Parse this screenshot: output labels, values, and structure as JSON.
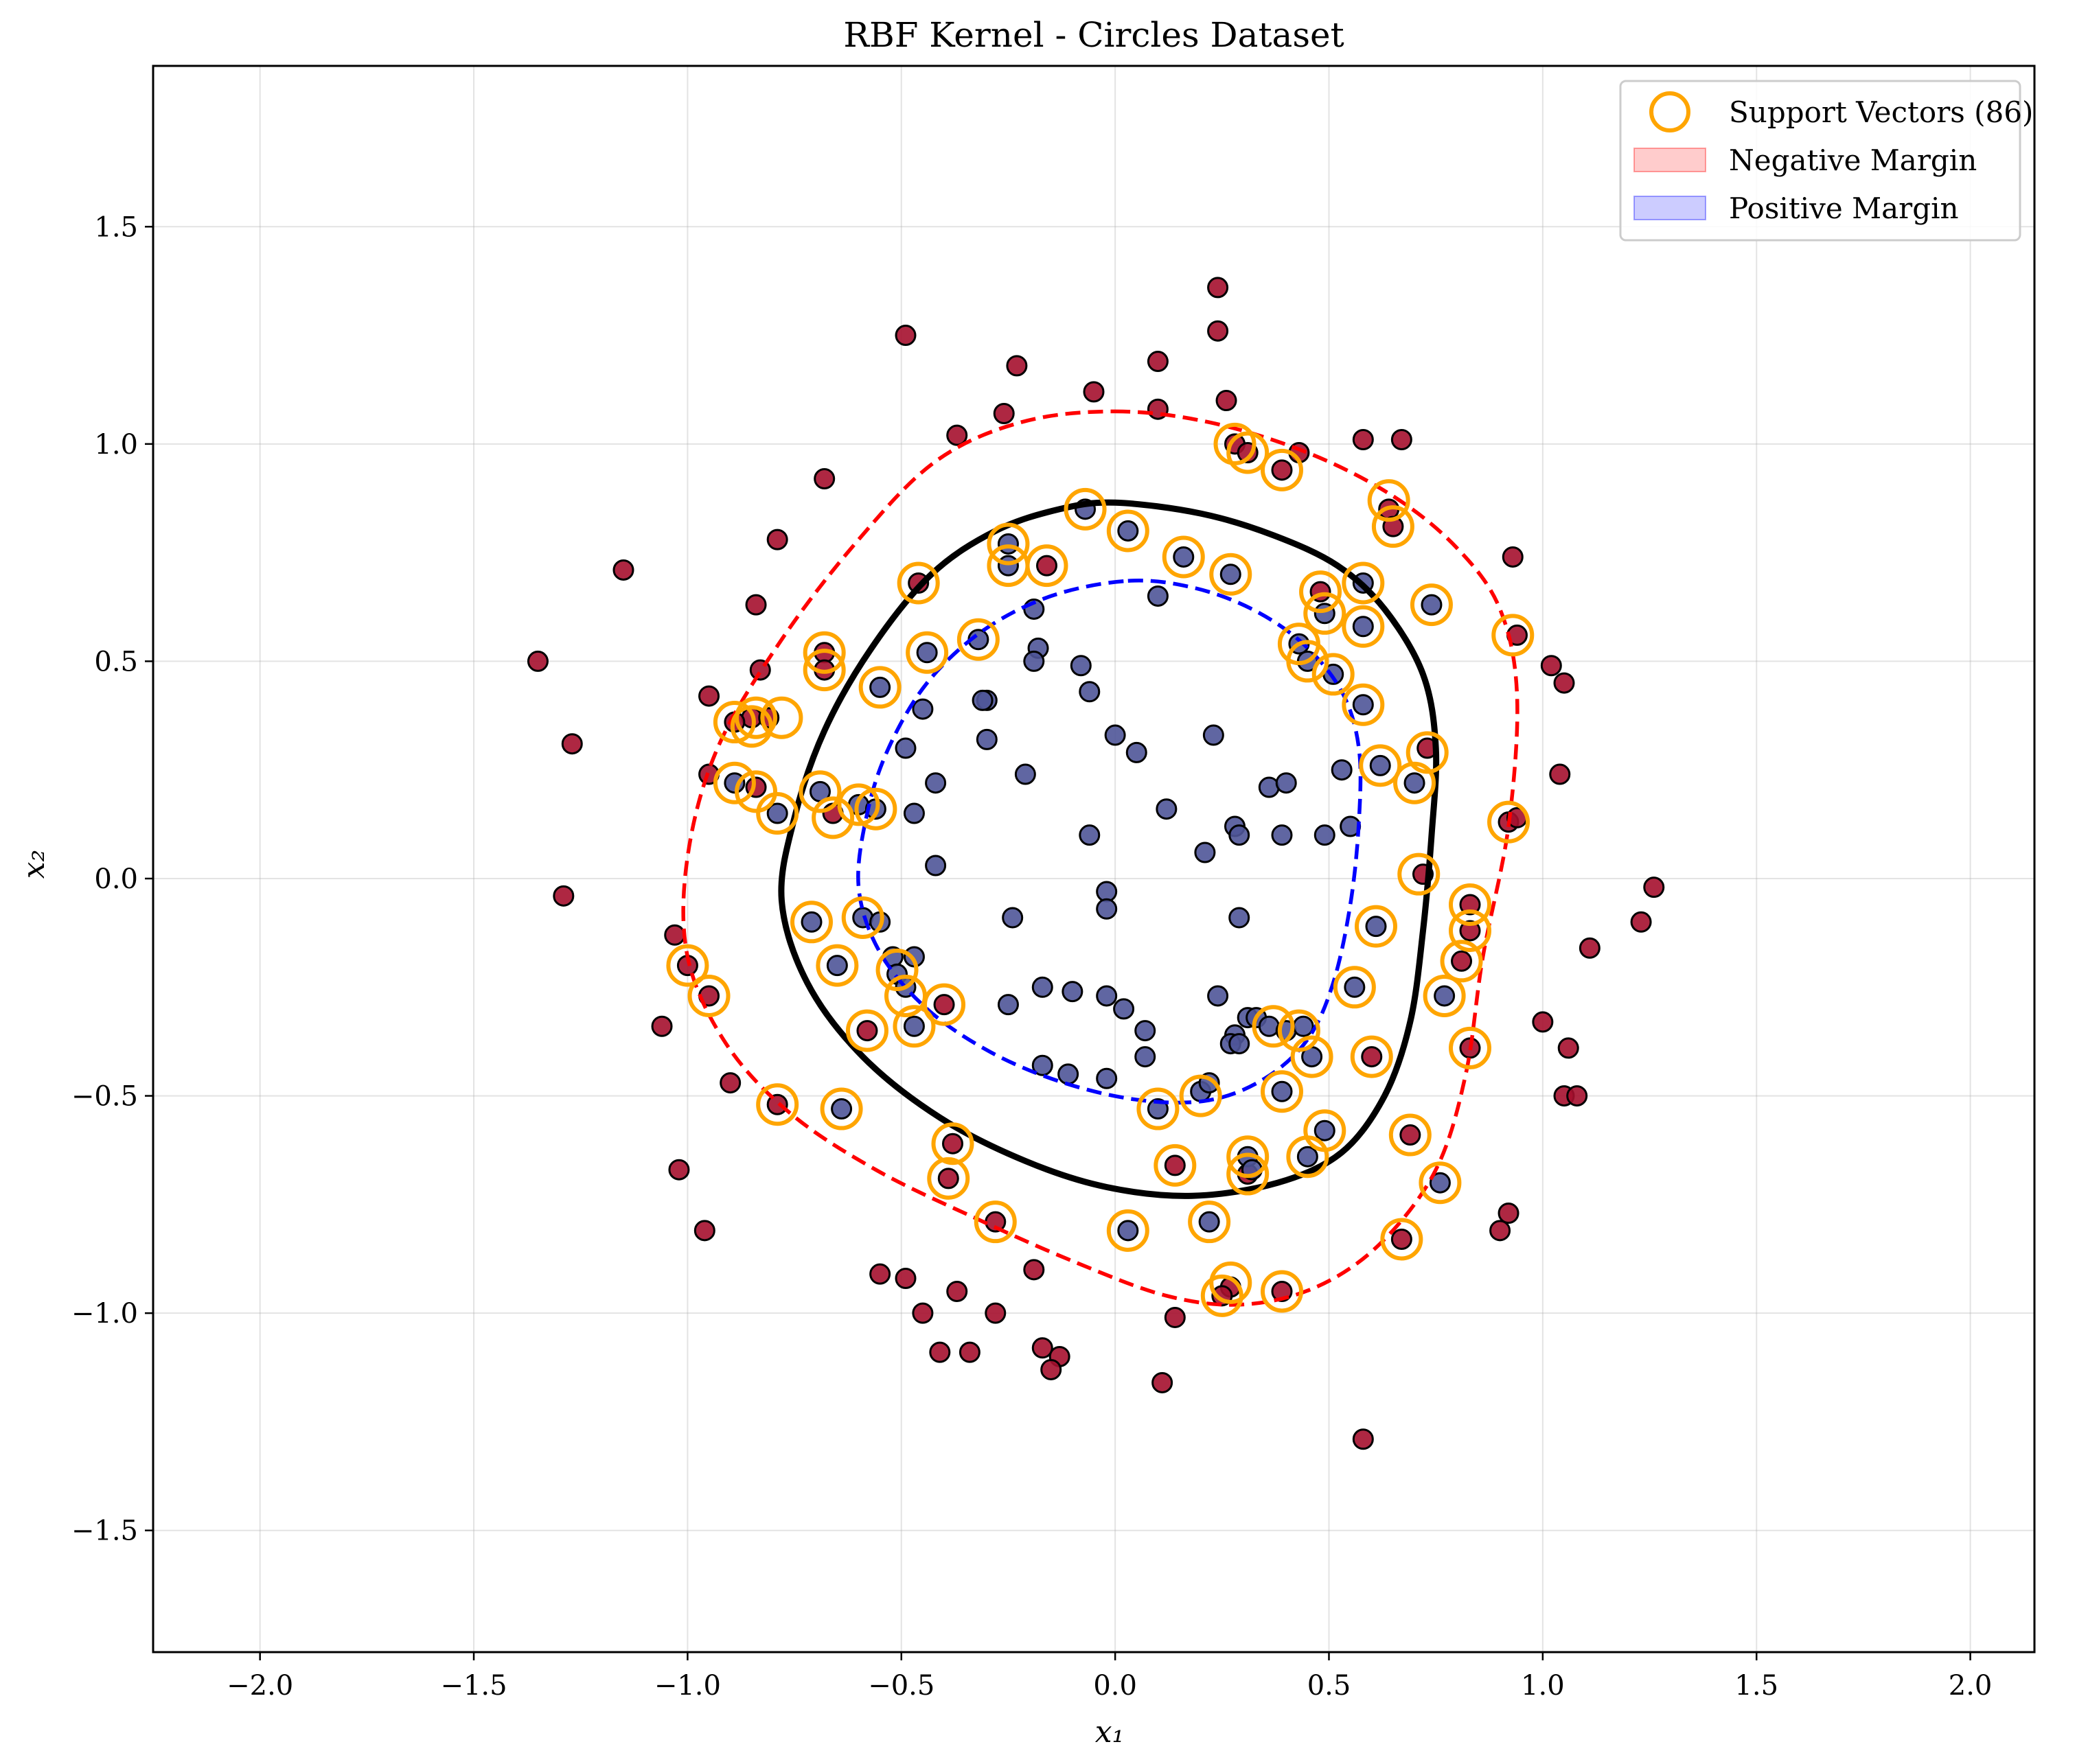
{
  "chart_data": {
    "type": "scatter",
    "title": "RBF Kernel - Circles Dataset",
    "xlabel": "x₁",
    "ylabel": "x₂",
    "xlim": [
      -2.25,
      2.15
    ],
    "ylim": [
      -1.78,
      1.87
    ],
    "xticks": [
      -2.0,
      -1.5,
      -1.0,
      -0.5,
      0.0,
      0.5,
      1.0,
      1.5,
      2.0
    ],
    "yticks": [
      -1.5,
      -1.0,
      -0.5,
      0.0,
      0.5,
      1.0,
      1.5
    ],
    "xtick_labels": [
      "−2.0",
      "−1.5",
      "−1.0",
      "−0.5",
      "0.0",
      "0.5",
      "1.0",
      "1.5",
      "2.0"
    ],
    "ytick_labels": [
      "−1.5",
      "−1.0",
      "−0.5",
      "0.0",
      "0.5",
      "1.0",
      "1.5"
    ],
    "grid": true,
    "legend_position": "top-right",
    "legend": [
      {
        "label": "Support Vectors (86)",
        "marker": "ring",
        "color": "#FFA500"
      },
      {
        "label": "Negative Margin",
        "marker": "patch",
        "color": "#FF0000"
      },
      {
        "label": "Positive Margin",
        "marker": "patch",
        "color": "#0000FF"
      }
    ],
    "colors": {
      "outer_class": "#A50F2E",
      "inner_class": "#4F5598",
      "support_ring": "#FFA500",
      "decision_boundary": "#000000",
      "negative_margin": "#FF0000",
      "positive_margin": "#0000FF"
    },
    "outer_class_points": [
      [
        0.24,
        1.36
      ],
      [
        0.24,
        1.26
      ],
      [
        -0.49,
        1.25
      ],
      [
        -0.23,
        1.18
      ],
      [
        0.1,
        1.19
      ],
      [
        -0.05,
        1.12
      ],
      [
        -0.26,
        1.07
      ],
      [
        0.1,
        1.08
      ],
      [
        0.26,
        1.1
      ],
      [
        -0.37,
        1.02
      ],
      [
        0.58,
        1.01
      ],
      [
        0.67,
        1.01
      ],
      [
        0.28,
        1.0
      ],
      [
        0.31,
        0.98
      ],
      [
        0.43,
        0.98
      ],
      [
        0.39,
        0.94
      ],
      [
        -0.68,
        0.92
      ],
      [
        0.64,
        0.85
      ],
      [
        0.65,
        0.81
      ],
      [
        -0.79,
        0.78
      ],
      [
        -1.15,
        0.71
      ],
      [
        -0.16,
        0.72
      ],
      [
        -0.46,
        0.68
      ],
      [
        0.93,
        0.74
      ],
      [
        -0.84,
        0.63
      ],
      [
        0.48,
        0.66
      ],
      [
        -1.35,
        0.5
      ],
      [
        -0.83,
        0.48
      ],
      [
        -0.68,
        0.52
      ],
      [
        -0.68,
        0.48
      ],
      [
        -0.95,
        0.42
      ],
      [
        -0.85,
        0.37
      ],
      [
        -0.89,
        0.36
      ],
      [
        -0.81,
        0.37
      ],
      [
        1.02,
        0.49
      ],
      [
        1.05,
        0.45
      ],
      [
        0.94,
        0.56
      ],
      [
        -1.27,
        0.31
      ],
      [
        0.73,
        0.3
      ],
      [
        -0.95,
        0.24
      ],
      [
        -0.84,
        0.21
      ],
      [
        1.04,
        0.24
      ],
      [
        -0.66,
        0.15
      ],
      [
        0.92,
        0.13
      ],
      [
        0.94,
        0.14
      ],
      [
        -1.29,
        -0.04
      ],
      [
        1.26,
        -0.02
      ],
      [
        0.72,
        0.01
      ],
      [
        0.83,
        -0.06
      ],
      [
        0.83,
        -0.12
      ],
      [
        1.23,
        -0.1
      ],
      [
        -1.03,
        -0.13
      ],
      [
        -1.0,
        -0.2
      ],
      [
        1.11,
        -0.16
      ],
      [
        0.81,
        -0.19
      ],
      [
        -0.95,
        -0.27
      ],
      [
        -0.4,
        -0.29
      ],
      [
        -1.06,
        -0.34
      ],
      [
        -0.58,
        -0.35
      ],
      [
        1.0,
        -0.33
      ],
      [
        0.83,
        -0.39
      ],
      [
        1.06,
        -0.39
      ],
      [
        0.6,
        -0.41
      ],
      [
        -0.9,
        -0.47
      ],
      [
        -0.79,
        -0.52
      ],
      [
        1.05,
        -0.5
      ],
      [
        1.08,
        -0.5
      ],
      [
        0.69,
        -0.59
      ],
      [
        -0.38,
        -0.61
      ],
      [
        -1.02,
        -0.67
      ],
      [
        0.14,
        -0.66
      ],
      [
        0.31,
        -0.68
      ],
      [
        -0.39,
        -0.69
      ],
      [
        -0.28,
        -0.79
      ],
      [
        -0.96,
        -0.81
      ],
      [
        0.9,
        -0.81
      ],
      [
        0.92,
        -0.77
      ],
      [
        0.67,
        -0.83
      ],
      [
        -0.19,
        -0.9
      ],
      [
        -0.55,
        -0.91
      ],
      [
        -0.49,
        -0.92
      ],
      [
        0.27,
        -0.94
      ],
      [
        0.25,
        -0.96
      ],
      [
        -0.37,
        -0.95
      ],
      [
        0.39,
        -0.95
      ],
      [
        -0.45,
        -1.0
      ],
      [
        -0.28,
        -1.0
      ],
      [
        0.14,
        -1.01
      ],
      [
        -0.41,
        -1.09
      ],
      [
        -0.34,
        -1.09
      ],
      [
        -0.17,
        -1.08
      ],
      [
        -0.13,
        -1.1
      ],
      [
        -0.15,
        -1.13
      ],
      [
        0.11,
        -1.16
      ],
      [
        0.58,
        -1.29
      ]
    ],
    "inner_class_points": [
      [
        -0.07,
        0.85
      ],
      [
        0.03,
        0.8
      ],
      [
        -0.25,
        0.77
      ],
      [
        -0.25,
        0.72
      ],
      [
        0.16,
        0.74
      ],
      [
        0.27,
        0.7
      ],
      [
        0.58,
        0.68
      ],
      [
        0.1,
        0.65
      ],
      [
        0.49,
        0.61
      ],
      [
        0.58,
        0.58
      ],
      [
        0.74,
        0.63
      ],
      [
        -0.19,
        0.62
      ],
      [
        -0.32,
        0.55
      ],
      [
        -0.44,
        0.52
      ],
      [
        0.43,
        0.54
      ],
      [
        0.45,
        0.5
      ],
      [
        -0.18,
        0.53
      ],
      [
        -0.19,
        0.5
      ],
      [
        -0.08,
        0.49
      ],
      [
        0.51,
        0.47
      ],
      [
        -0.55,
        0.44
      ],
      [
        -0.06,
        0.43
      ],
      [
        -0.3,
        0.41
      ],
      [
        -0.31,
        0.41
      ],
      [
        -0.45,
        0.39
      ],
      [
        0.58,
        0.4
      ],
      [
        0.0,
        0.33
      ],
      [
        0.23,
        0.33
      ],
      [
        -0.3,
        0.32
      ],
      [
        0.05,
        0.29
      ],
      [
        -0.49,
        0.3
      ],
      [
        0.53,
        0.25
      ],
      [
        0.62,
        0.26
      ],
      [
        -0.21,
        0.24
      ],
      [
        -0.42,
        0.22
      ],
      [
        0.36,
        0.21
      ],
      [
        0.4,
        0.22
      ],
      [
        0.7,
        0.22
      ],
      [
        -0.89,
        0.22
      ],
      [
        -0.69,
        0.2
      ],
      [
        -0.6,
        0.17
      ],
      [
        -0.56,
        0.16
      ],
      [
        -0.47,
        0.15
      ],
      [
        -0.79,
        0.15
      ],
      [
        0.12,
        0.16
      ],
      [
        0.28,
        0.12
      ],
      [
        0.29,
        0.1
      ],
      [
        0.39,
        0.1
      ],
      [
        0.49,
        0.1
      ],
      [
        0.55,
        0.12
      ],
      [
        -0.06,
        0.1
      ],
      [
        0.21,
        0.06
      ],
      [
        -0.42,
        0.03
      ],
      [
        -0.02,
        -0.03
      ],
      [
        -0.02,
        -0.07
      ],
      [
        -0.59,
        -0.09
      ],
      [
        -0.55,
        -0.1
      ],
      [
        -0.71,
        -0.1
      ],
      [
        -0.24,
        -0.09
      ],
      [
        0.29,
        -0.09
      ],
      [
        0.61,
        -0.11
      ],
      [
        -0.65,
        -0.2
      ],
      [
        -0.52,
        -0.18
      ],
      [
        -0.47,
        -0.18
      ],
      [
        -0.51,
        -0.22
      ],
      [
        -0.49,
        -0.25
      ],
      [
        -0.17,
        -0.25
      ],
      [
        -0.1,
        -0.26
      ],
      [
        -0.02,
        -0.27
      ],
      [
        0.24,
        -0.27
      ],
      [
        0.56,
        -0.25
      ],
      [
        0.77,
        -0.27
      ],
      [
        -0.25,
        -0.29
      ],
      [
        0.02,
        -0.3
      ],
      [
        -0.47,
        -0.34
      ],
      [
        0.31,
        -0.32
      ],
      [
        0.33,
        -0.32
      ],
      [
        0.36,
        -0.34
      ],
      [
        0.28,
        -0.36
      ],
      [
        0.4,
        -0.35
      ],
      [
        0.44,
        -0.34
      ],
      [
        0.07,
        -0.35
      ],
      [
        0.27,
        -0.38
      ],
      [
        0.29,
        -0.38
      ],
      [
        0.46,
        -0.41
      ],
      [
        0.07,
        -0.41
      ],
      [
        -0.17,
        -0.43
      ],
      [
        -0.11,
        -0.45
      ],
      [
        -0.02,
        -0.46
      ],
      [
        0.2,
        -0.49
      ],
      [
        0.22,
        -0.47
      ],
      [
        0.39,
        -0.49
      ],
      [
        0.1,
        -0.53
      ],
      [
        -0.64,
        -0.53
      ],
      [
        0.49,
        -0.58
      ],
      [
        0.45,
        -0.64
      ],
      [
        0.31,
        -0.64
      ],
      [
        0.32,
        -0.67
      ],
      [
        0.76,
        -0.7
      ],
      [
        0.22,
        -0.79
      ],
      [
        0.03,
        -0.81
      ]
    ],
    "support_vectors": [
      [
        0.28,
        1.0
      ],
      [
        0.31,
        0.98
      ],
      [
        0.39,
        0.94
      ],
      [
        0.64,
        0.87
      ],
      [
        0.65,
        0.81
      ],
      [
        -0.07,
        0.85
      ],
      [
        0.03,
        0.8
      ],
      [
        -0.25,
        0.77
      ],
      [
        -0.25,
        0.72
      ],
      [
        -0.16,
        0.72
      ],
      [
        0.16,
        0.74
      ],
      [
        0.27,
        0.7
      ],
      [
        -0.46,
        0.68
      ],
      [
        0.48,
        0.66
      ],
      [
        0.58,
        0.68
      ],
      [
        0.49,
        0.61
      ],
      [
        0.58,
        0.58
      ],
      [
        0.74,
        0.63
      ],
      [
        0.93,
        0.56
      ],
      [
        -0.32,
        0.55
      ],
      [
        -0.44,
        0.52
      ],
      [
        -0.68,
        0.52
      ],
      [
        -0.68,
        0.48
      ],
      [
        0.43,
        0.54
      ],
      [
        0.45,
        0.5
      ],
      [
        0.51,
        0.47
      ],
      [
        -0.55,
        0.44
      ],
      [
        0.58,
        0.4
      ],
      [
        -0.89,
        0.36
      ],
      [
        -0.84,
        0.37
      ],
      [
        -0.78,
        0.37
      ],
      [
        -0.85,
        0.35
      ],
      [
        0.62,
        0.26
      ],
      [
        0.73,
        0.29
      ],
      [
        0.7,
        0.22
      ],
      [
        -0.89,
        0.22
      ],
      [
        -0.69,
        0.2
      ],
      [
        -0.84,
        0.2
      ],
      [
        -0.6,
        0.17
      ],
      [
        -0.56,
        0.16
      ],
      [
        -0.66,
        0.14
      ],
      [
        -0.79,
        0.15
      ],
      [
        0.92,
        0.13
      ],
      [
        0.71,
        0.01
      ],
      [
        0.83,
        -0.06
      ],
      [
        0.83,
        -0.12
      ],
      [
        -0.71,
        -0.1
      ],
      [
        -0.59,
        -0.09
      ],
      [
        0.61,
        -0.11
      ],
      [
        -1.0,
        -0.2
      ],
      [
        -0.65,
        -0.2
      ],
      [
        0.81,
        -0.19
      ],
      [
        -0.51,
        -0.21
      ],
      [
        -0.95,
        -0.27
      ],
      [
        -0.49,
        -0.27
      ],
      [
        -0.4,
        -0.29
      ],
      [
        0.77,
        -0.27
      ],
      [
        0.56,
        -0.25
      ],
      [
        -0.58,
        -0.35
      ],
      [
        -0.47,
        -0.34
      ],
      [
        0.37,
        -0.34
      ],
      [
        0.43,
        -0.35
      ],
      [
        0.83,
        -0.39
      ],
      [
        0.46,
        -0.41
      ],
      [
        0.6,
        -0.41
      ],
      [
        0.39,
        -0.49
      ],
      [
        0.2,
        -0.5
      ],
      [
        -0.79,
        -0.52
      ],
      [
        -0.64,
        -0.53
      ],
      [
        0.1,
        -0.53
      ],
      [
        0.49,
        -0.58
      ],
      [
        0.69,
        -0.59
      ],
      [
        -0.38,
        -0.61
      ],
      [
        0.45,
        -0.64
      ],
      [
        0.31,
        -0.64
      ],
      [
        0.14,
        -0.66
      ],
      [
        0.31,
        -0.68
      ],
      [
        -0.39,
        -0.69
      ],
      [
        0.76,
        -0.7
      ],
      [
        -0.28,
        -0.79
      ],
      [
        0.22,
        -0.79
      ],
      [
        0.03,
        -0.81
      ],
      [
        0.67,
        -0.83
      ],
      [
        0.27,
        -0.93
      ],
      [
        0.25,
        -0.96
      ],
      [
        0.39,
        -0.95
      ]
    ],
    "decision_boundary": [
      [
        0.0,
        0.865
      ],
      [
        0.2,
        0.84
      ],
      [
        0.37,
        0.79
      ],
      [
        0.52,
        0.72
      ],
      [
        0.63,
        0.62
      ],
      [
        0.72,
        0.47
      ],
      [
        0.75,
        0.3
      ],
      [
        0.74,
        0.1
      ],
      [
        0.72,
        -0.12
      ],
      [
        0.69,
        -0.33
      ],
      [
        0.63,
        -0.5
      ],
      [
        0.53,
        -0.63
      ],
      [
        0.38,
        -0.7
      ],
      [
        0.18,
        -0.73
      ],
      [
        -0.02,
        -0.71
      ],
      [
        -0.21,
        -0.65
      ],
      [
        -0.41,
        -0.55
      ],
      [
        -0.59,
        -0.41
      ],
      [
        -0.72,
        -0.24
      ],
      [
        -0.78,
        -0.05
      ],
      [
        -0.75,
        0.14
      ],
      [
        -0.68,
        0.34
      ],
      [
        -0.57,
        0.53
      ],
      [
        -0.43,
        0.7
      ],
      [
        -0.28,
        0.8
      ],
      [
        -0.13,
        0.85
      ],
      [
        0.0,
        0.865
      ]
    ],
    "negative_margin": [
      [
        0.0,
        1.075
      ],
      [
        0.22,
        1.05
      ],
      [
        0.45,
        0.98
      ],
      [
        0.65,
        0.88
      ],
      [
        0.8,
        0.76
      ],
      [
        0.9,
        0.62
      ],
      [
        0.94,
        0.42
      ],
      [
        0.92,
        0.12
      ],
      [
        0.86,
        -0.18
      ],
      [
        0.82,
        -0.45
      ],
      [
        0.75,
        -0.67
      ],
      [
        0.62,
        -0.84
      ],
      [
        0.47,
        -0.94
      ],
      [
        0.3,
        -0.98
      ],
      [
        0.12,
        -0.96
      ],
      [
        -0.1,
        -0.88
      ],
      [
        -0.33,
        -0.78
      ],
      [
        -0.56,
        -0.67
      ],
      [
        -0.76,
        -0.54
      ],
      [
        -0.91,
        -0.38
      ],
      [
        -1.0,
        -0.18
      ],
      [
        -1.0,
        0.05
      ],
      [
        -0.93,
        0.3
      ],
      [
        -0.78,
        0.55
      ],
      [
        -0.6,
        0.78
      ],
      [
        -0.42,
        0.96
      ],
      [
        -0.22,
        1.05
      ],
      [
        0.0,
        1.075
      ]
    ],
    "positive_margin": [
      [
        0.03,
        0.685
      ],
      [
        0.18,
        0.67
      ],
      [
        0.32,
        0.62
      ],
      [
        0.44,
        0.54
      ],
      [
        0.53,
        0.43
      ],
      [
        0.57,
        0.3
      ],
      [
        0.57,
        0.13
      ],
      [
        0.55,
        -0.06
      ],
      [
        0.51,
        -0.24
      ],
      [
        0.45,
        -0.37
      ],
      [
        0.35,
        -0.46
      ],
      [
        0.22,
        -0.51
      ],
      [
        0.06,
        -0.51
      ],
      [
        -0.12,
        -0.47
      ],
      [
        -0.29,
        -0.4
      ],
      [
        -0.44,
        -0.3
      ],
      [
        -0.55,
        -0.17
      ],
      [
        -0.6,
        -0.02
      ],
      [
        -0.58,
        0.15
      ],
      [
        -0.53,
        0.3
      ],
      [
        -0.44,
        0.45
      ],
      [
        -0.31,
        0.57
      ],
      [
        -0.15,
        0.65
      ],
      [
        0.03,
        0.685
      ]
    ]
  }
}
